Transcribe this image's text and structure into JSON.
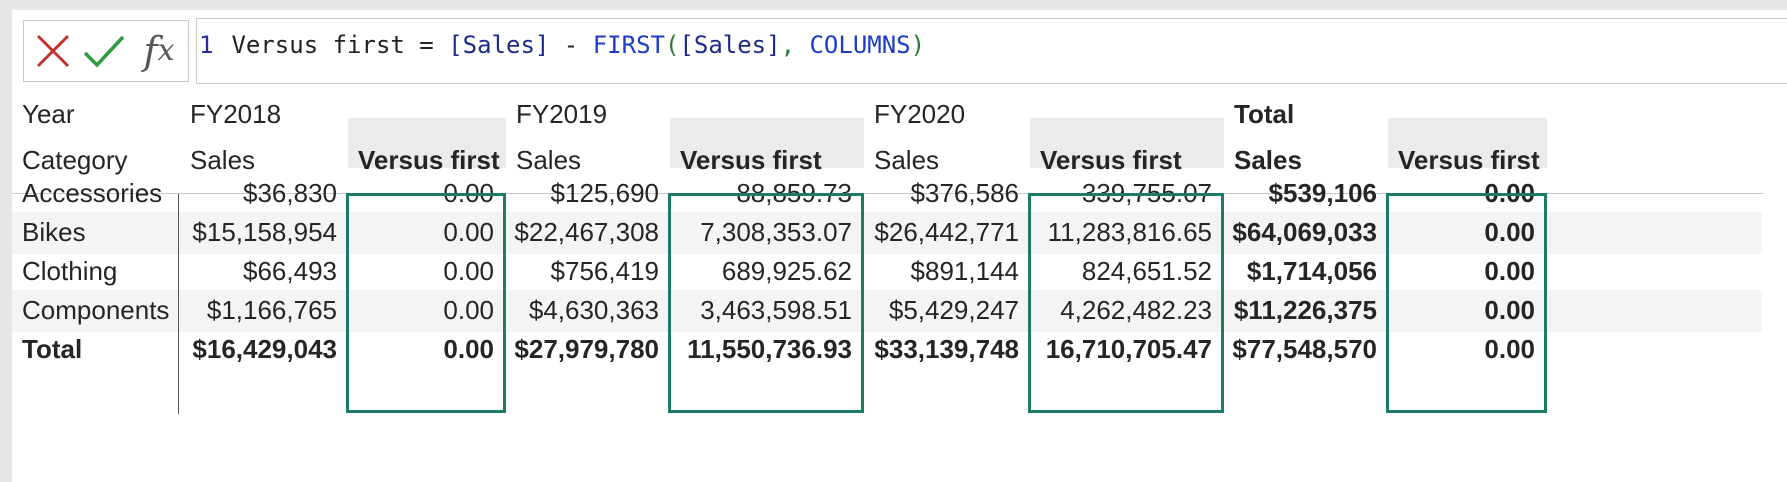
{
  "formula": {
    "line_number": "1",
    "tokens": [
      {
        "text": "Versus first = ",
        "kind": "plain"
      },
      {
        "text": "[Sales]",
        "kind": "col"
      },
      {
        "text": " - ",
        "kind": "plain"
      },
      {
        "text": "FIRST",
        "kind": "fn"
      },
      {
        "text": "(",
        "kind": "br"
      },
      {
        "text": "[Sales]",
        "kind": "col"
      },
      {
        "text": ", ",
        "kind": "br"
      },
      {
        "text": "COLUMNS",
        "kind": "fn"
      },
      {
        "text": ")",
        "kind": "br"
      }
    ],
    "fx_label": "f",
    "fx_sub": "x"
  },
  "matrix": {
    "row_header_1": "Year",
    "row_header_2": "Category",
    "years": [
      "FY2018",
      "FY2019",
      "FY2020",
      "Total"
    ],
    "col_sales": "Sales",
    "col_versus": "Versus first",
    "rows": [
      {
        "label": "Accessories",
        "values": [
          "$36,830",
          "0.00",
          "$125,690",
          "88,859.73",
          "$376,586",
          "339,755.07",
          "$539,106",
          "0.00"
        ]
      },
      {
        "label": "Bikes",
        "values": [
          "$15,158,954",
          "0.00",
          "$22,467,308",
          "7,308,353.07",
          "$26,442,771",
          "11,283,816.65",
          "$64,069,033",
          "0.00"
        ]
      },
      {
        "label": "Clothing",
        "values": [
          "$66,493",
          "0.00",
          "$756,419",
          "689,925.62",
          "$891,144",
          "824,651.52",
          "$1,714,056",
          "0.00"
        ]
      },
      {
        "label": "Components",
        "values": [
          "$1,166,765",
          "0.00",
          "$4,630,363",
          "3,463,598.51",
          "$5,429,247",
          "4,262,482.23",
          "$11,226,375",
          "0.00"
        ]
      }
    ],
    "total_row": {
      "label": "Total",
      "values": [
        "$16,429,043",
        "0.00",
        "$27,979,780",
        "11,550,736.93",
        "$33,139,748",
        "16,710,705.47",
        "$77,548,570",
        "0.00"
      ]
    },
    "accent_color": "#1b7a68"
  }
}
